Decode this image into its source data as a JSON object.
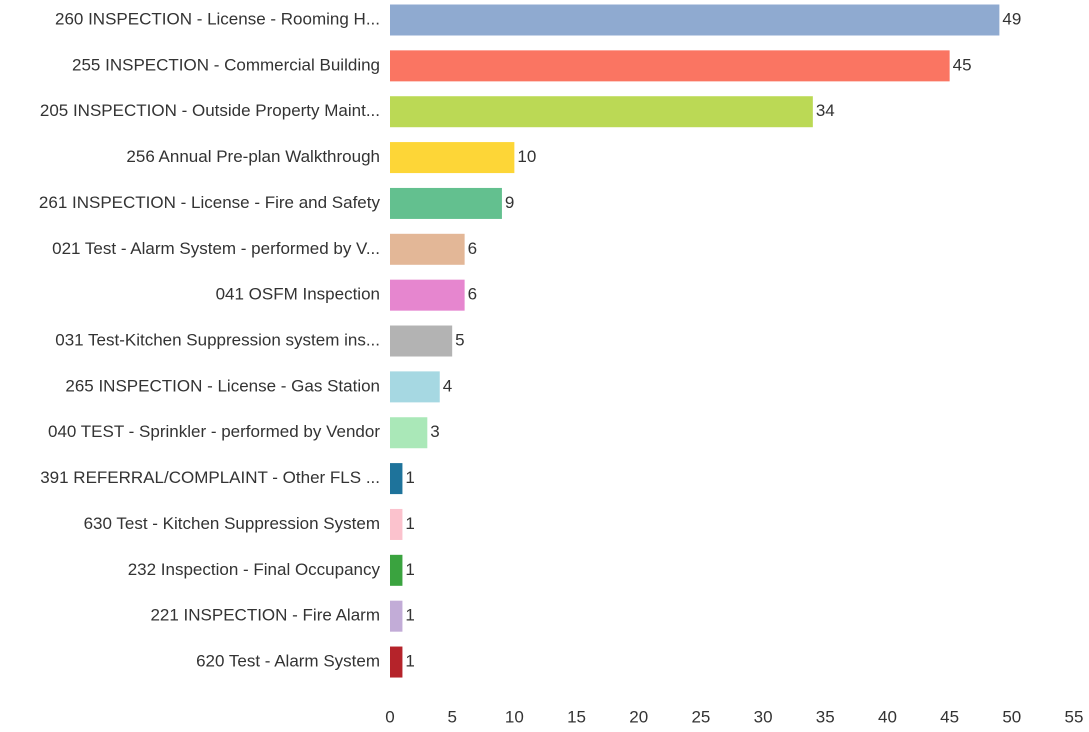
{
  "chart_data": {
    "type": "bar",
    "orientation": "horizontal",
    "categories": [
      "260 INSPECTION - License - Rooming H...",
      "255 INSPECTION - Commercial Building",
      "205 INSPECTION - Outside Property Maint...",
      "256 Annual Pre-plan Walkthrough",
      "261 INSPECTION - License - Fire and Safety",
      "021 Test - Alarm System - performed by V...",
      "041 OSFM Inspection",
      "031 Test-Kitchen Suppression system ins...",
      "265 INSPECTION - License - Gas Station",
      "040 TEST - Sprinkler - performed by Vendor",
      "391 REFERRAL/COMPLAINT - Other FLS ...",
      "630 Test - Kitchen Suppression System",
      "232 Inspection - Final Occupancy",
      "221 INSPECTION - Fire Alarm",
      "620 Test - Alarm System"
    ],
    "values": [
      49,
      45,
      34,
      10,
      9,
      6,
      6,
      5,
      4,
      3,
      1,
      1,
      1,
      1,
      1
    ],
    "colors": [
      "#8faad0",
      "#fa7562",
      "#bbd955",
      "#fdd637",
      "#63c08f",
      "#e3b797",
      "#e686cf",
      "#b3b3b3",
      "#a6d8e2",
      "#aae8b8",
      "#1e739b",
      "#fbc2cd",
      "#3aa33f",
      "#c2acd7",
      "#b5232a"
    ],
    "xlim": [
      0,
      55
    ],
    "xticks": [
      0,
      5,
      10,
      15,
      20,
      25,
      30,
      35,
      40,
      45,
      50,
      55
    ],
    "grid": false
  }
}
